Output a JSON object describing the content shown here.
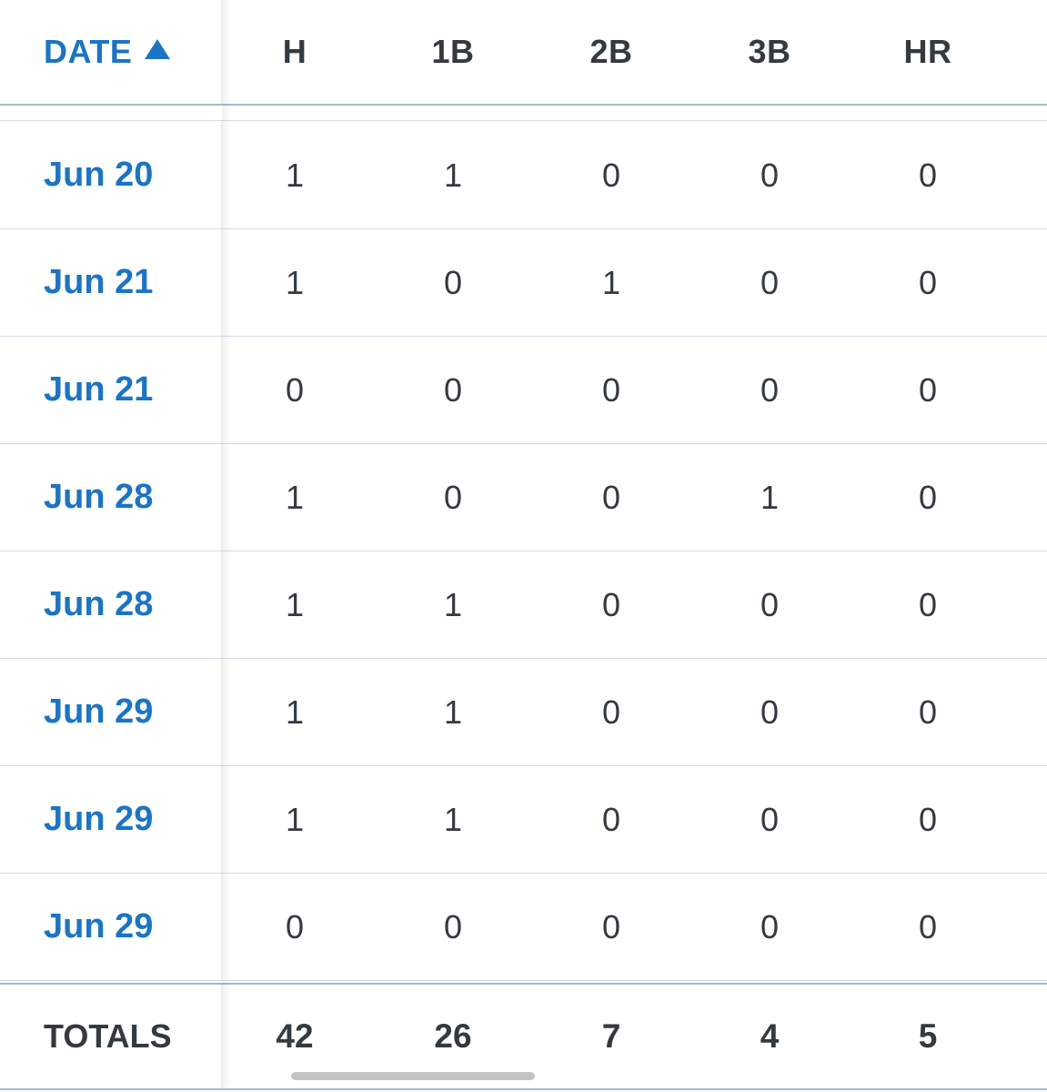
{
  "table": {
    "columns": [
      "H",
      "1B",
      "2B",
      "3B",
      "HR"
    ],
    "date_header": "DATE",
    "sort": "ascending",
    "rows": [
      {
        "date": "Jun 20",
        "values": [
          "1",
          "1",
          "0",
          "0",
          "0"
        ]
      },
      {
        "date": "Jun 21",
        "values": [
          "1",
          "0",
          "1",
          "0",
          "0"
        ]
      },
      {
        "date": "Jun 21",
        "values": [
          "0",
          "0",
          "0",
          "0",
          "0"
        ]
      },
      {
        "date": "Jun 28",
        "values": [
          "1",
          "0",
          "0",
          "1",
          "0"
        ]
      },
      {
        "date": "Jun 28",
        "values": [
          "1",
          "1",
          "0",
          "0",
          "0"
        ]
      },
      {
        "date": "Jun 29",
        "values": [
          "1",
          "1",
          "0",
          "0",
          "0"
        ]
      },
      {
        "date": "Jun 29",
        "values": [
          "1",
          "1",
          "0",
          "0",
          "0"
        ]
      },
      {
        "date": "Jun 29",
        "values": [
          "0",
          "0",
          "0",
          "0",
          "0"
        ]
      }
    ],
    "totals": {
      "label": "TOTALS",
      "values": [
        "42",
        "26",
        "7",
        "4",
        "5"
      ]
    }
  },
  "colors": {
    "link": "#1b74c4",
    "text": "#333a40",
    "divider": "#d3dde6",
    "strong_divider": "#a9b8c6"
  },
  "icons": {
    "sort": "triangle-up-icon"
  }
}
